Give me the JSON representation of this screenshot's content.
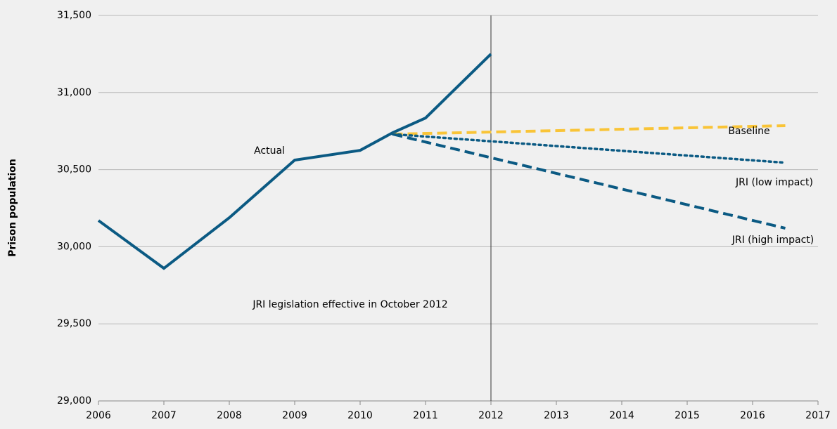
{
  "chart_data": {
    "type": "line",
    "y_label": "Prison population",
    "xlim": [
      2006,
      2017
    ],
    "xticks": [
      2006,
      2007,
      2008,
      2009,
      2010,
      2011,
      2012,
      2013,
      2014,
      2015,
      2016,
      2017
    ],
    "ylim": [
      29000,
      31500
    ],
    "yticks": [
      {
        "value": 29000,
        "label": "29,000"
      },
      {
        "value": 29500,
        "label": "29,500"
      },
      {
        "value": 30000,
        "label": "30,000"
      },
      {
        "value": 30500,
        "label": "30,500"
      },
      {
        "value": 31000,
        "label": "31,000"
      },
      {
        "value": 31500,
        "label": "31,500"
      }
    ],
    "grid": true,
    "series": [
      {
        "name": "Actual",
        "color": "#0b5a83",
        "dash": "solid",
        "x": [
          2006,
          2007,
          2008,
          2009,
          2010,
          2010.5,
          2011,
          2012
        ],
        "values": [
          30170,
          29860,
          30188,
          30562,
          30625,
          30740,
          30835,
          31250
        ]
      },
      {
        "name": "Baseline",
        "color": "#f9c437",
        "dash": "dashed",
        "x": [
          2010.5,
          2016.5
        ],
        "values": [
          30730,
          30785
        ]
      },
      {
        "name": "JRI (low impact)",
        "color": "#0b5a83",
        "dash": "dotted",
        "x": [
          2010.5,
          2016.5
        ],
        "values": [
          30730,
          30545
        ]
      },
      {
        "name": "JRI (high impact)",
        "color": "#0b5a83",
        "dash": "dashed",
        "x": [
          2010.5,
          2016.5
        ],
        "values": [
          30730,
          30120
        ]
      }
    ],
    "reference_line": {
      "x": 2012,
      "label": "JRI legislation effective in October 2012"
    }
  }
}
